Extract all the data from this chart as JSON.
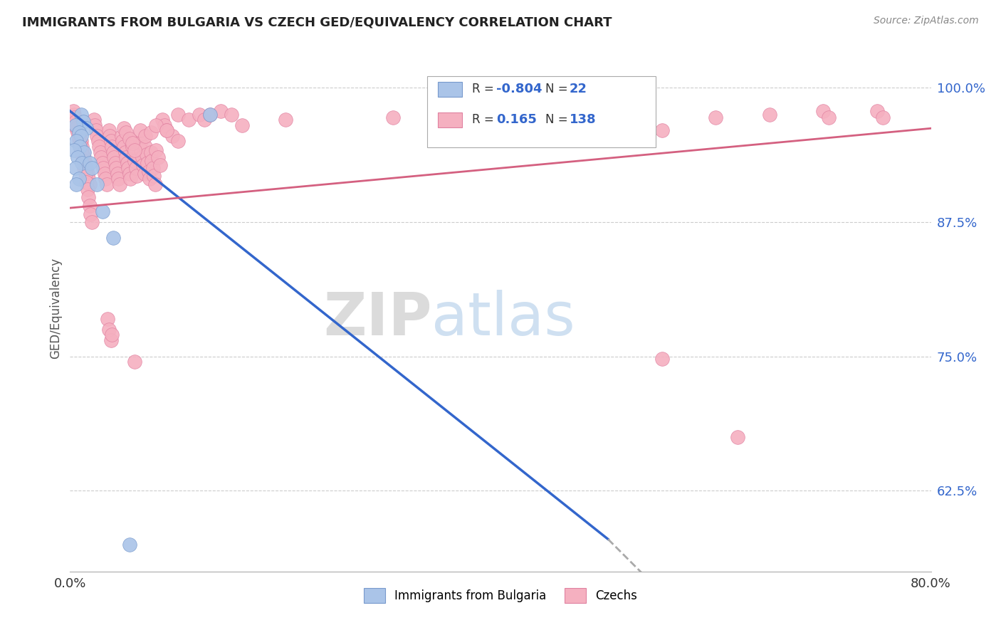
{
  "title": "IMMIGRANTS FROM BULGARIA VS CZECH GED/EQUIVALENCY CORRELATION CHART",
  "source": "Source: ZipAtlas.com",
  "ylabel": "GED/Equivalency",
  "y_ticks": [
    0.625,
    0.75,
    0.875,
    1.0
  ],
  "y_tick_labels": [
    "62.5%",
    "75.0%",
    "87.5%",
    "100.0%"
  ],
  "legend_entries": [
    {
      "label": "Immigrants from Bulgaria",
      "R": -0.804,
      "N": 22,
      "color": "#aac4e8",
      "edgecolor": "#7799cc"
    },
    {
      "label": "Czechs",
      "R": 0.165,
      "N": 138,
      "color": "#f5b0c0",
      "edgecolor": "#e080a0"
    }
  ],
  "watermark_zip": "ZIP",
  "watermark_atlas": "atlas",
  "background_color": "#ffffff",
  "grid_color": "#cccccc",
  "grid_linestyle": "--",
  "blue_line_color": "#3366cc",
  "pink_line_color": "#d46080",
  "dashed_extension_color": "#aaaaaa",
  "blue_scatter_color": "#aac4e8",
  "pink_scatter_color": "#f5b0c0",
  "blue_scatter_edgecolor": "#7799cc",
  "pink_scatter_edgecolor": "#e080a0",
  "blue_dots": [
    [
      1.0,
      97.5
    ],
    [
      1.2,
      96.8
    ],
    [
      1.5,
      96.2
    ],
    [
      0.5,
      96.5
    ],
    [
      0.8,
      95.8
    ],
    [
      1.0,
      95.5
    ],
    [
      0.6,
      95.0
    ],
    [
      0.9,
      94.5
    ],
    [
      1.3,
      94.0
    ],
    [
      0.4,
      94.2
    ],
    [
      0.7,
      93.5
    ],
    [
      1.1,
      93.0
    ],
    [
      0.5,
      92.5
    ],
    [
      0.8,
      91.5
    ],
    [
      0.6,
      91.0
    ],
    [
      1.8,
      93.0
    ],
    [
      2.0,
      92.5
    ],
    [
      2.5,
      91.0
    ],
    [
      3.0,
      88.5
    ],
    [
      4.0,
      86.0
    ],
    [
      5.5,
      57.5
    ],
    [
      13.0,
      97.5
    ]
  ],
  "pink_dots": [
    [
      0.4,
      97.5
    ],
    [
      0.5,
      97.0
    ],
    [
      0.6,
      96.5
    ],
    [
      0.7,
      96.2
    ],
    [
      0.8,
      95.8
    ],
    [
      0.9,
      95.5
    ],
    [
      1.0,
      95.0
    ],
    [
      1.1,
      94.5
    ],
    [
      1.2,
      94.0
    ],
    [
      1.3,
      93.5
    ],
    [
      1.4,
      93.0
    ],
    [
      1.5,
      92.5
    ],
    [
      1.6,
      92.0
    ],
    [
      1.7,
      91.5
    ],
    [
      1.8,
      91.0
    ],
    [
      0.3,
      97.8
    ],
    [
      0.4,
      97.2
    ],
    [
      0.5,
      96.8
    ],
    [
      0.6,
      96.2
    ],
    [
      0.7,
      95.8
    ],
    [
      0.8,
      95.2
    ],
    [
      0.9,
      94.8
    ],
    [
      1.0,
      94.2
    ],
    [
      1.1,
      93.8
    ],
    [
      1.2,
      93.2
    ],
    [
      1.3,
      92.5
    ],
    [
      1.4,
      92.0
    ],
    [
      1.5,
      91.2
    ],
    [
      1.6,
      90.5
    ],
    [
      1.7,
      89.8
    ],
    [
      1.8,
      89.0
    ],
    [
      1.9,
      88.2
    ],
    [
      2.0,
      87.5
    ],
    [
      2.2,
      97.0
    ],
    [
      2.3,
      96.5
    ],
    [
      2.4,
      96.0
    ],
    [
      2.5,
      95.5
    ],
    [
      2.6,
      95.0
    ],
    [
      2.7,
      94.5
    ],
    [
      2.8,
      94.0
    ],
    [
      2.9,
      93.5
    ],
    [
      3.0,
      93.0
    ],
    [
      3.1,
      92.5
    ],
    [
      3.2,
      92.0
    ],
    [
      3.3,
      91.5
    ],
    [
      3.4,
      91.0
    ],
    [
      3.6,
      96.0
    ],
    [
      3.7,
      95.5
    ],
    [
      3.8,
      95.0
    ],
    [
      3.9,
      94.5
    ],
    [
      4.0,
      94.0
    ],
    [
      4.1,
      93.5
    ],
    [
      4.2,
      93.0
    ],
    [
      4.3,
      92.5
    ],
    [
      4.4,
      92.0
    ],
    [
      4.5,
      91.5
    ],
    [
      4.6,
      91.0
    ],
    [
      4.8,
      95.5
    ],
    [
      4.9,
      95.0
    ],
    [
      5.0,
      94.5
    ],
    [
      5.1,
      94.0
    ],
    [
      5.2,
      93.5
    ],
    [
      5.3,
      93.0
    ],
    [
      5.4,
      92.5
    ],
    [
      5.5,
      92.0
    ],
    [
      5.6,
      91.5
    ],
    [
      5.7,
      95.0
    ],
    [
      5.8,
      94.5
    ],
    [
      5.9,
      93.8
    ],
    [
      6.0,
      93.2
    ],
    [
      6.1,
      92.5
    ],
    [
      6.2,
      91.8
    ],
    [
      6.5,
      94.8
    ],
    [
      6.6,
      94.2
    ],
    [
      6.7,
      93.5
    ],
    [
      6.8,
      92.8
    ],
    [
      6.9,
      92.0
    ],
    [
      7.0,
      94.5
    ],
    [
      7.1,
      93.8
    ],
    [
      7.2,
      93.0
    ],
    [
      7.3,
      92.2
    ],
    [
      7.4,
      91.5
    ],
    [
      7.5,
      94.0
    ],
    [
      7.6,
      93.2
    ],
    [
      7.7,
      92.5
    ],
    [
      7.8,
      91.8
    ],
    [
      7.9,
      91.0
    ],
    [
      8.0,
      94.2
    ],
    [
      8.2,
      93.5
    ],
    [
      8.4,
      92.8
    ],
    [
      8.6,
      97.0
    ],
    [
      8.8,
      96.5
    ],
    [
      9.0,
      96.0
    ],
    [
      9.5,
      95.5
    ],
    [
      10.0,
      95.0
    ],
    [
      3.5,
      78.5
    ],
    [
      3.6,
      77.5
    ],
    [
      3.8,
      76.5
    ],
    [
      3.9,
      77.0
    ],
    [
      5.0,
      96.2
    ],
    [
      5.2,
      95.8
    ],
    [
      5.5,
      95.2
    ],
    [
      5.8,
      94.8
    ],
    [
      6.0,
      94.2
    ],
    [
      6.5,
      96.0
    ],
    [
      7.0,
      95.5
    ],
    [
      7.5,
      95.8
    ],
    [
      8.0,
      96.5
    ],
    [
      9.0,
      96.0
    ],
    [
      10.0,
      97.5
    ],
    [
      11.0,
      97.0
    ],
    [
      12.0,
      97.5
    ],
    [
      12.5,
      97.0
    ],
    [
      13.0,
      97.5
    ],
    [
      14.0,
      97.8
    ],
    [
      15.0,
      97.5
    ],
    [
      16.0,
      96.5
    ],
    [
      20.0,
      97.0
    ],
    [
      30.0,
      97.2
    ],
    [
      35.0,
      97.5
    ],
    [
      40.0,
      96.8
    ],
    [
      50.0,
      96.5
    ],
    [
      55.0,
      96.0
    ],
    [
      60.0,
      97.2
    ],
    [
      65.0,
      97.5
    ],
    [
      70.0,
      97.8
    ],
    [
      70.5,
      97.2
    ],
    [
      75.0,
      97.8
    ],
    [
      75.5,
      97.2
    ],
    [
      6.0,
      74.5
    ],
    [
      55.0,
      74.8
    ],
    [
      62.0,
      67.5
    ]
  ],
  "blue_line_x": [
    0,
    50
  ],
  "blue_line_y": [
    97.8,
    58.0
  ],
  "dashed_line_x": [
    50,
    60
  ],
  "dashed_line_y": [
    58.0,
    48.0
  ],
  "pink_line_x": [
    0,
    80
  ],
  "pink_line_y": [
    88.8,
    96.2
  ],
  "xlim": [
    0,
    80
  ],
  "ylim": [
    55,
    104
  ],
  "dot_size": 200
}
